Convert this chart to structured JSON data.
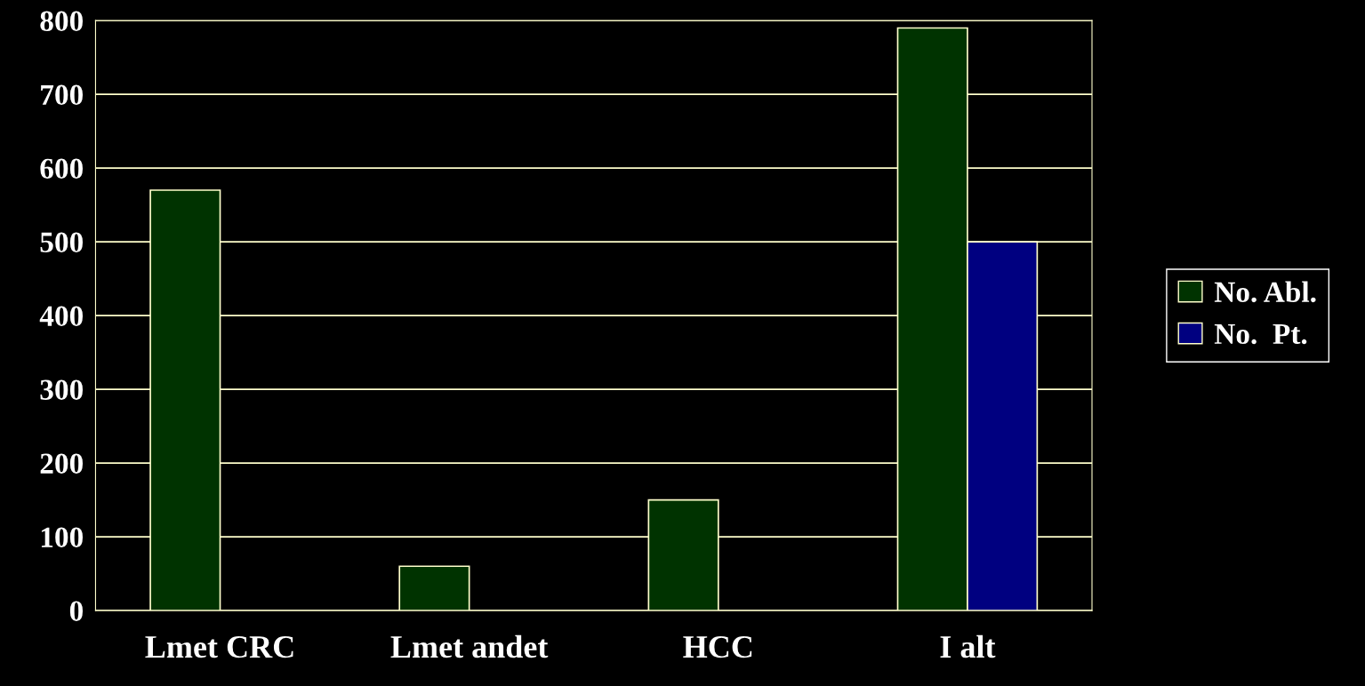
{
  "chart_data": {
    "type": "bar",
    "categories": [
      "Lmet CRC",
      "Lmet andet",
      "HCC",
      "I alt"
    ],
    "series": [
      {
        "name": "No. Abl.",
        "color": "#003300",
        "values": [
          570,
          60,
          150,
          790
        ]
      },
      {
        "name": "No.  Pt.",
        "color": "#000080",
        "values": [
          null,
          null,
          null,
          500
        ]
      }
    ],
    "ylim": [
      0,
      800
    ],
    "yticks": [
      0,
      100,
      200,
      300,
      400,
      500,
      600,
      700,
      800
    ],
    "grid": "y",
    "legend": "right"
  }
}
